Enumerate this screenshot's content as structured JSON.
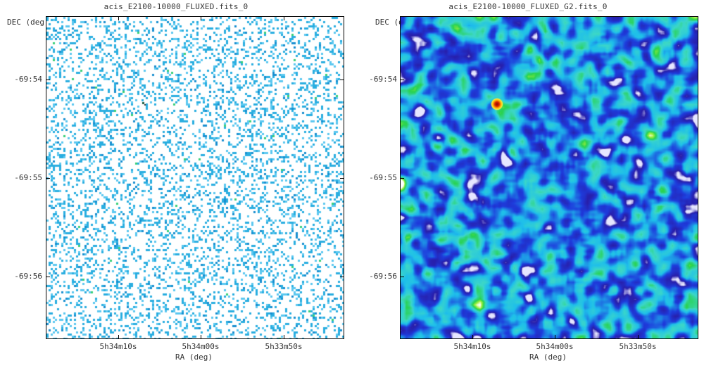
{
  "panels": [
    {
      "title": "acis_E2100-10000_FLUXED.fits_0",
      "y_axis_label": "DEC (deg)",
      "x_axis_label": "RA (deg)",
      "y_ticks": [
        "-69:54",
        "-69:55",
        "-69:56"
      ],
      "x_ticks": [
        "5h34m10s",
        "5h34m00s",
        "5h33m50s"
      ],
      "colormap": "sparse-cyan"
    },
    {
      "title": "acis_E2100-10000_FLUXED_G2.fits_0",
      "y_axis_label": "DEC (deg)",
      "x_axis_label": "RA (deg)",
      "y_ticks": [
        "-69:54",
        "-69:55",
        "-69:56"
      ],
      "x_ticks": [
        "5h34m10s",
        "5h34m00s",
        "5h33m50s"
      ],
      "colormap": "smoothed-jet"
    }
  ],
  "colors": {
    "background": "#ffffff",
    "sparse_pixel": "#2aaee0",
    "smooth_low": "#1a2ccc",
    "smooth_mid": "#1ec8e8",
    "smooth_high": "#22dd44",
    "source_core": "#cc2200"
  }
}
